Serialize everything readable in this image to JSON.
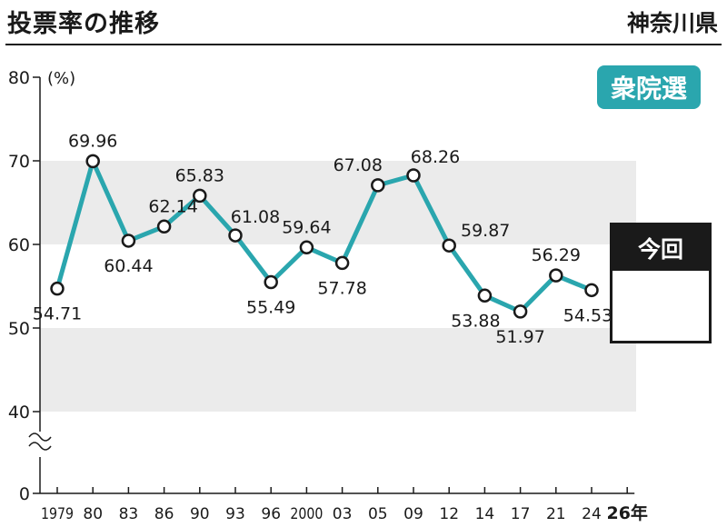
{
  "header": {
    "title": "投票率の推移",
    "region": "神奈川県"
  },
  "badge": {
    "label": "衆院選"
  },
  "current": {
    "label": "今回"
  },
  "colors": {
    "line": "#2aa6ae",
    "band": "#ebebeb",
    "badge_bg": "#2aa6ae",
    "text": "#1a1a1a"
  },
  "chart_data": {
    "type": "line",
    "title": "投票率の推移",
    "ylabel": "(%)",
    "xlabel": "",
    "ylim": [
      0,
      80
    ],
    "y_axis_break": [
      0,
      40
    ],
    "yticks": [
      0,
      40,
      50,
      60,
      70,
      80
    ],
    "categories": [
      "1979",
      "80",
      "83",
      "86",
      "90",
      "93",
      "96",
      "2000",
      "03",
      "05",
      "09",
      "12",
      "14",
      "17",
      "21",
      "24",
      "26年"
    ],
    "series": [
      {
        "values": [
          54.71,
          69.96,
          60.44,
          62.14,
          65.83,
          61.08,
          55.49,
          59.64,
          57.78,
          67.08,
          68.26,
          59.87,
          53.88,
          51.97,
          56.29,
          54.53,
          null
        ],
        "labels": [
          "54.71",
          "69.96",
          "60.44",
          "62.14",
          "65.83",
          "61.08",
          "55.49",
          "59.64",
          "57.78",
          "67.08",
          "68.26",
          "59.87",
          "53.88",
          "51.97",
          "56.29",
          "54.53",
          ""
        ]
      }
    ],
    "bands": [
      [
        40,
        50
      ],
      [
        60,
        70
      ]
    ],
    "legend": "none"
  }
}
